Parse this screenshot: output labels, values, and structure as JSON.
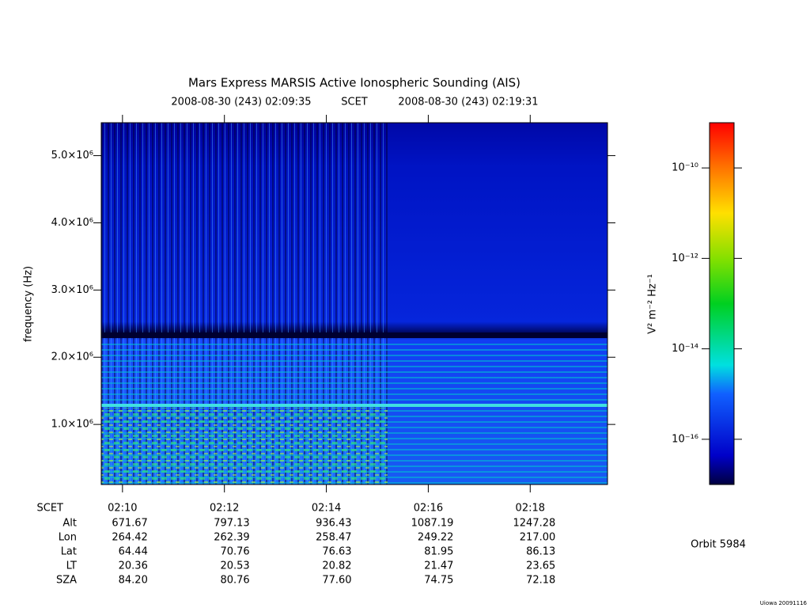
{
  "chart_data": {
    "type": "spectrogram",
    "title": "Mars Express MARSIS Active Ionospheric Sounding (AIS)",
    "start_time": "2008-08-30 (243) 02:09:35",
    "time_label": "SCET",
    "end_time": "2008-08-30 (243) 02:19:31",
    "ylabel": "frequency (Hz)",
    "ylim": [
      106000,
      5490000
    ],
    "yticks": [
      {
        "value": 1000000,
        "label": "1.0×10⁶"
      },
      {
        "value": 2000000,
        "label": "2.0×10⁶"
      },
      {
        "value": 3000000,
        "label": "3.0×10⁶"
      },
      {
        "value": 4000000,
        "label": "4.0×10⁶"
      },
      {
        "value": 5000000,
        "label": "5.0×10⁶"
      }
    ],
    "xticks": [
      "02:10",
      "02:12",
      "02:14",
      "02:16",
      "02:18"
    ],
    "colorbar": {
      "label": "V² m⁻² Hz⁻¹",
      "scale": "log",
      "lim": [
        1e-17,
        1e-09
      ],
      "ticks": [
        {
          "value": 1e-16,
          "label": "10⁻¹⁶"
        },
        {
          "value": 1e-14,
          "label": "10⁻¹⁴"
        },
        {
          "value": 1e-12,
          "label": "10⁻¹²"
        },
        {
          "value": 1e-10,
          "label": "10⁻¹⁰"
        }
      ]
    },
    "ephemeris": [
      {
        "label": "Alt",
        "values": [
          "671.67",
          "797.13",
          "936.43",
          "1087.19",
          "1247.28"
        ]
      },
      {
        "label": "Lon",
        "values": [
          "264.42",
          "262.39",
          "258.47",
          "249.22",
          "217.00"
        ]
      },
      {
        "label": "Lat",
        "values": [
          "64.44",
          "70.76",
          "76.63",
          "81.95",
          "86.13"
        ]
      },
      {
        "label": "LT",
        "values": [
          "20.36",
          "20.53",
          "20.82",
          "21.47",
          "23.65"
        ]
      },
      {
        "label": "SZA",
        "values": [
          "84.20",
          "80.76",
          "77.60",
          "74.75",
          "72.18"
        ]
      }
    ],
    "orbit": "Orbit 5984",
    "footer": "Uiowa 20091116"
  }
}
